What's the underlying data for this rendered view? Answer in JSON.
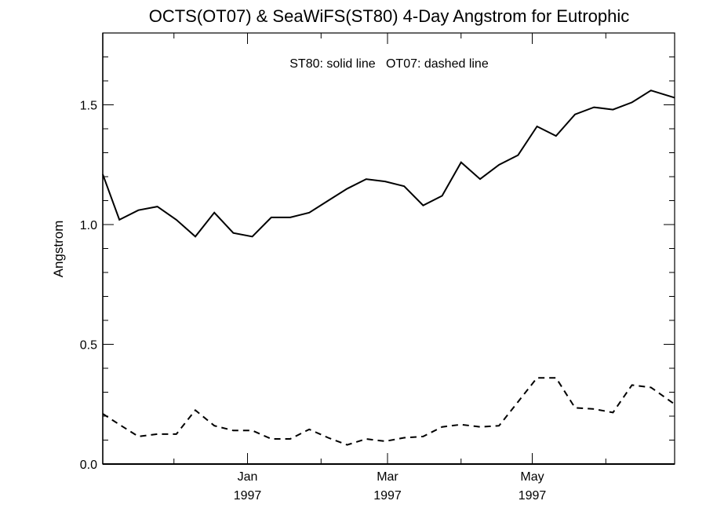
{
  "chart_data": {
    "type": "line",
    "title": "OCTS(OT07) & SeaWiFS(ST80) 4-Day Angstrom for Eutrophic",
    "annotation": "ST80: solid line   OT07: dashed line",
    "ylabel": "Angstrom",
    "xlabel": "",
    "ylim": [
      0,
      1.8
    ],
    "y_ticks": [
      0.0,
      0.5,
      1.0,
      1.5
    ],
    "y_tick_labels": [
      "0.0",
      "0.5",
      "1.0",
      "1.5"
    ],
    "y_minor_step": 0.1,
    "x_axis_type": "date",
    "xlim": [
      "1996-11-01",
      "1997-06-30"
    ],
    "x_ticks": [
      {
        "date": "1997-01-01",
        "month": "Jan",
        "year": "1997"
      },
      {
        "date": "1997-03-01",
        "month": "Mar",
        "year": "1997"
      },
      {
        "date": "1997-05-01",
        "month": "May",
        "year": "1997"
      }
    ],
    "x_minor_tick_dates": [
      "1996-12-01",
      "1997-02-01",
      "1997-04-01",
      "1997-06-01"
    ],
    "grid": false,
    "legend": "none",
    "series": [
      {
        "name": "ST80",
        "style": "solid",
        "color": "#000000",
        "points": [
          {
            "x": "1996-11-01",
            "y": 1.21
          },
          {
            "x": "1996-11-08",
            "y": 1.02
          },
          {
            "x": "1996-11-16",
            "y": 1.06
          },
          {
            "x": "1996-11-24",
            "y": 1.075
          },
          {
            "x": "1996-12-02",
            "y": 1.02
          },
          {
            "x": "1996-12-10",
            "y": 0.95
          },
          {
            "x": "1996-12-18",
            "y": 1.05
          },
          {
            "x": "1996-12-26",
            "y": 0.965
          },
          {
            "x": "1997-01-03",
            "y": 0.95
          },
          {
            "x": "1997-01-11",
            "y": 1.03
          },
          {
            "x": "1997-01-19",
            "y": 1.03
          },
          {
            "x": "1997-01-27",
            "y": 1.05
          },
          {
            "x": "1997-02-04",
            "y": 1.1
          },
          {
            "x": "1997-02-12",
            "y": 1.15
          },
          {
            "x": "1997-02-20",
            "y": 1.19
          },
          {
            "x": "1997-02-28",
            "y": 1.18
          },
          {
            "x": "1997-03-08",
            "y": 1.16
          },
          {
            "x": "1997-03-16",
            "y": 1.08
          },
          {
            "x": "1997-03-24",
            "y": 1.12
          },
          {
            "x": "1997-04-01",
            "y": 1.26
          },
          {
            "x": "1997-04-09",
            "y": 1.19
          },
          {
            "x": "1997-04-17",
            "y": 1.25
          },
          {
            "x": "1997-04-25",
            "y": 1.29
          },
          {
            "x": "1997-05-03",
            "y": 1.41
          },
          {
            "x": "1997-05-11",
            "y": 1.37
          },
          {
            "x": "1997-05-19",
            "y": 1.46
          },
          {
            "x": "1997-05-27",
            "y": 1.49
          },
          {
            "x": "1997-06-04",
            "y": 1.48
          },
          {
            "x": "1997-06-12",
            "y": 1.51
          },
          {
            "x": "1997-06-20",
            "y": 1.56
          },
          {
            "x": "1997-06-30",
            "y": 1.53
          }
        ]
      },
      {
        "name": "OT07",
        "style": "dashed",
        "color": "#000000",
        "points": [
          {
            "x": "1996-11-01",
            "y": 0.21
          },
          {
            "x": "1996-11-08",
            "y": 0.165
          },
          {
            "x": "1996-11-16",
            "y": 0.115
          },
          {
            "x": "1996-11-24",
            "y": 0.125
          },
          {
            "x": "1996-12-02",
            "y": 0.125
          },
          {
            "x": "1996-12-10",
            "y": 0.225
          },
          {
            "x": "1996-12-18",
            "y": 0.16
          },
          {
            "x": "1996-12-26",
            "y": 0.14
          },
          {
            "x": "1997-01-03",
            "y": 0.14
          },
          {
            "x": "1997-01-11",
            "y": 0.105
          },
          {
            "x": "1997-01-19",
            "y": 0.105
          },
          {
            "x": "1997-01-27",
            "y": 0.145
          },
          {
            "x": "1997-02-04",
            "y": 0.11
          },
          {
            "x": "1997-02-12",
            "y": 0.08
          },
          {
            "x": "1997-02-20",
            "y": 0.105
          },
          {
            "x": "1997-02-28",
            "y": 0.095
          },
          {
            "x": "1997-03-08",
            "y": 0.11
          },
          {
            "x": "1997-03-16",
            "y": 0.115
          },
          {
            "x": "1997-03-24",
            "y": 0.155
          },
          {
            "x": "1997-04-01",
            "y": 0.165
          },
          {
            "x": "1997-04-09",
            "y": 0.155
          },
          {
            "x": "1997-04-17",
            "y": 0.16
          },
          {
            "x": "1997-04-25",
            "y": 0.26
          },
          {
            "x": "1997-05-03",
            "y": 0.36
          },
          {
            "x": "1997-05-11",
            "y": 0.36
          },
          {
            "x": "1997-05-19",
            "y": 0.235
          },
          {
            "x": "1997-05-27",
            "y": 0.23
          },
          {
            "x": "1997-06-04",
            "y": 0.215
          },
          {
            "x": "1997-06-12",
            "y": 0.33
          },
          {
            "x": "1997-06-20",
            "y": 0.32
          },
          {
            "x": "1997-06-30",
            "y": 0.25
          }
        ]
      }
    ]
  }
}
